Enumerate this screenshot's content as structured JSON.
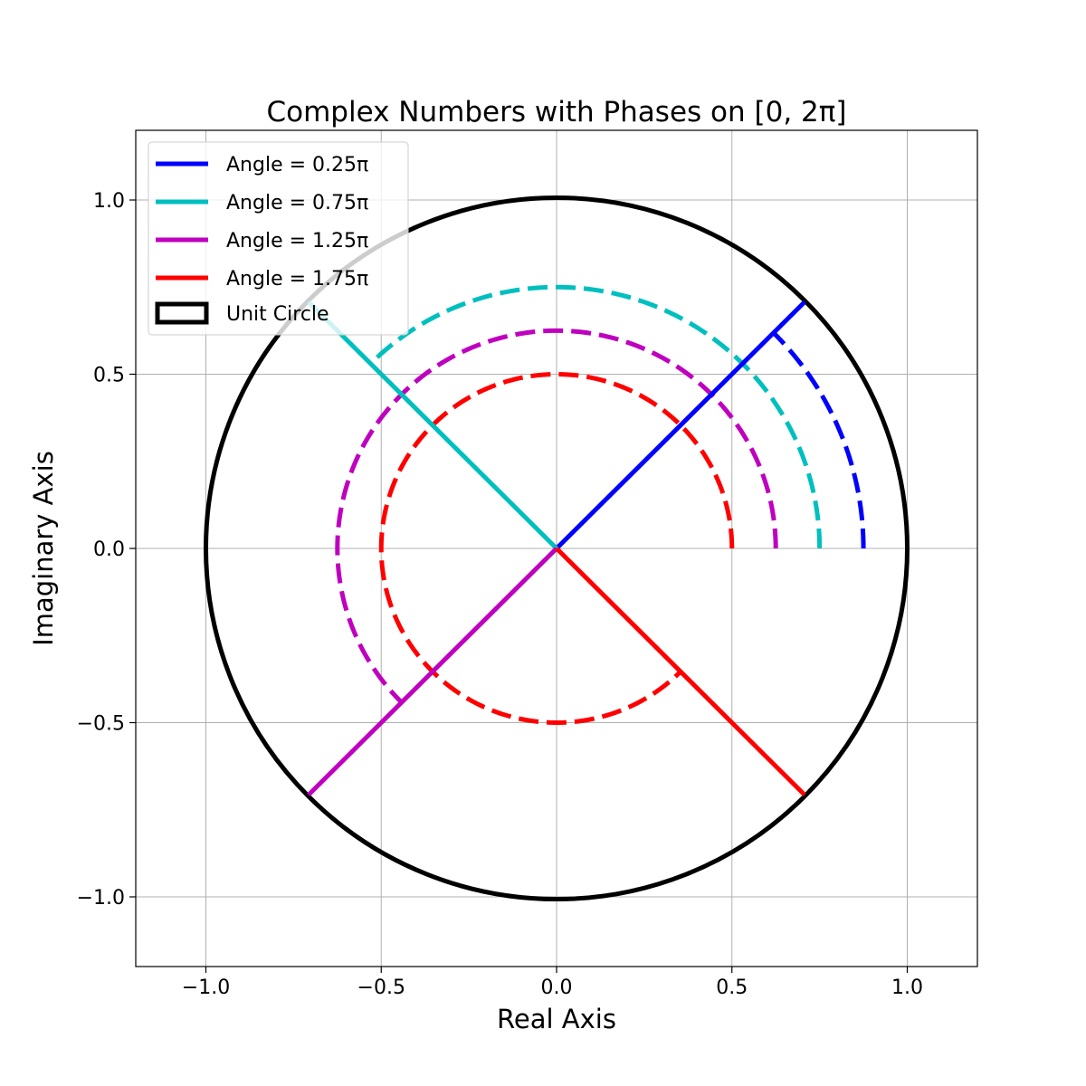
{
  "chart_data": {
    "type": "line",
    "title": "Complex Numbers with Phases on [0, 2π]",
    "xlabel": "Real Axis",
    "ylabel": "Imaginary Axis",
    "xlim": [
      -1.2,
      1.2
    ],
    "ylim": [
      -1.2,
      1.2
    ],
    "grid": true,
    "legend_position": "top-left",
    "x_ticks": [
      -1.0,
      -0.5,
      0.0,
      0.5,
      1.0
    ],
    "y_ticks": [
      -1.0,
      -0.5,
      0.0,
      0.5,
      1.0
    ],
    "x_tick_labels": [
      "−1.0",
      "−0.5",
      "0.0",
      "0.5",
      "1.0"
    ],
    "y_tick_labels": [
      "−1.0",
      "−0.5",
      "0.0",
      "0.5",
      "1.0"
    ],
    "unit_circle": {
      "label": "Unit Circle",
      "radius": 1.0,
      "color": "#000000"
    },
    "series": [
      {
        "name": "Angle = 0.25π",
        "angle_pi": 0.25,
        "arc_radius": 0.875,
        "color": "#0000ff"
      },
      {
        "name": "Angle = 0.75π",
        "angle_pi": 0.75,
        "arc_radius": 0.75,
        "color": "#00bfbf"
      },
      {
        "name": "Angle = 1.25π",
        "angle_pi": 1.25,
        "arc_radius": 0.625,
        "color": "#bf00bf"
      },
      {
        "name": "Angle = 1.75π",
        "angle_pi": 1.75,
        "arc_radius": 0.5,
        "color": "#ff0000"
      }
    ]
  }
}
